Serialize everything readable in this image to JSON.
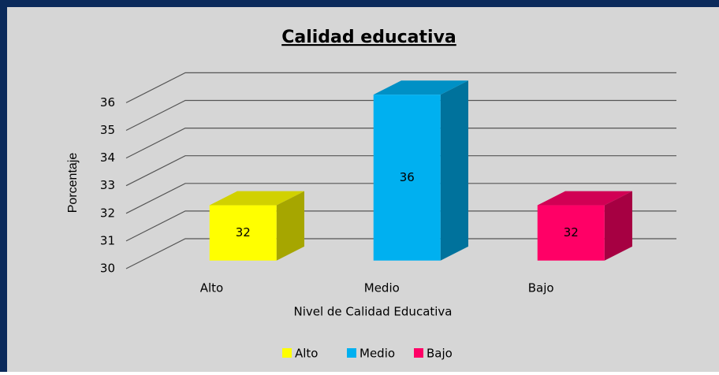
{
  "chart_data": {
    "type": "bar",
    "title": "Calidad educativa",
    "x_label": "Nivel de Calidad Educativa",
    "y_label": "Porcentaje",
    "categories": [
      "Alto",
      "Medio",
      "Bajo"
    ],
    "values": [
      32,
      36,
      32
    ],
    "colors": [
      "#ffff00",
      "#00b0f0",
      "#ff0066"
    ],
    "ylim": [
      30,
      36
    ],
    "yticks": [
      30,
      31,
      32,
      33,
      34,
      35,
      36
    ],
    "grid": true,
    "legend": "bottom"
  }
}
